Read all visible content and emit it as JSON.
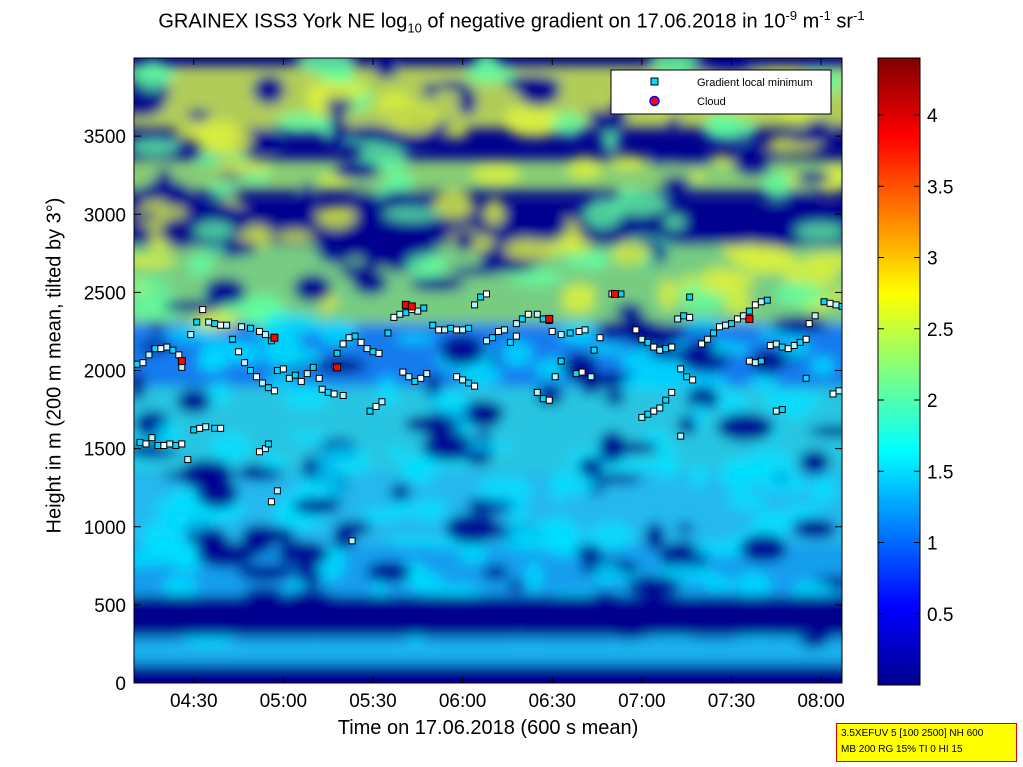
{
  "title": {
    "prefix": "GRAINEX ISS3 York NE log",
    "sub": "10",
    "mid": " of negative gradient on 17.06.2018 in 10",
    "sup1": "-9",
    "mid2": " m",
    "sup2": "-1",
    "mid3": " sr",
    "sup3": "-1"
  },
  "info_box": [
    "3.5XEFUV 5 [100 2500] NH 600",
    "MB 200 RG 15% TI 0 HI 15"
  ],
  "chart_data": {
    "type": "heatmap",
    "xlabel": "Time on 17.06.2018 (600 s mean)",
    "ylabel": "Height in m (200 m mean, tilted by 3°)",
    "x_ticks": [
      "04:30",
      "05:00",
      "05:30",
      "06:00",
      "06:30",
      "07:00",
      "07:30",
      "08:00"
    ],
    "x_tick_minutes": [
      270,
      300,
      330,
      360,
      390,
      420,
      450,
      480
    ],
    "xlim_minutes": [
      250,
      487
    ],
    "ylim": [
      0,
      4000
    ],
    "y_ticks": [
      0,
      500,
      1000,
      1500,
      2000,
      2500,
      3000,
      3500
    ],
    "colorbar": {
      "range": [
        0,
        4.4
      ],
      "ticks": [
        0.5,
        1,
        1.5,
        2,
        2.5,
        3,
        3.5,
        4
      ],
      "colormap": "jet"
    },
    "legend": {
      "placement": "top-right",
      "entries": [
        {
          "label": "Gradient local minimum",
          "marker": "square",
          "color": "#00d8ff"
        },
        {
          "label": "Cloud",
          "marker": "circle",
          "color": "#ff0000",
          "edge": "#0000ff"
        }
      ]
    },
    "series": [
      {
        "name": "Gradient local minimum",
        "points": [
          [
            251,
            2040
          ],
          [
            253,
            2050
          ],
          [
            255,
            2100
          ],
          [
            257,
            2140
          ],
          [
            259,
            2140
          ],
          [
            261,
            2150
          ],
          [
            263,
            2130
          ],
          [
            265,
            2100
          ],
          [
            266,
            2020
          ],
          [
            252,
            1540
          ],
          [
            254,
            1530
          ],
          [
            256,
            1570
          ],
          [
            258,
            1520
          ],
          [
            260,
            1520
          ],
          [
            262,
            1530
          ],
          [
            264,
            1520
          ],
          [
            266,
            1530
          ],
          [
            268,
            1430
          ],
          [
            270,
            1620
          ],
          [
            272,
            1630
          ],
          [
            274,
            1640
          ],
          [
            277,
            1630
          ],
          [
            279,
            1630
          ],
          [
            269,
            2230
          ],
          [
            271,
            2310
          ],
          [
            273,
            2390
          ],
          [
            275,
            2310
          ],
          [
            277,
            2300
          ],
          [
            279,
            2290
          ],
          [
            281,
            2290
          ],
          [
            283,
            2200
          ],
          [
            285,
            2120
          ],
          [
            287,
            2050
          ],
          [
            289,
            2000
          ],
          [
            291,
            1960
          ],
          [
            293,
            1920
          ],
          [
            295,
            1890
          ],
          [
            297,
            1870
          ],
          [
            286,
            2280
          ],
          [
            289,
            2270
          ],
          [
            292,
            2250
          ],
          [
            294,
            2230
          ],
          [
            296,
            2190
          ],
          [
            292,
            1480
          ],
          [
            294,
            1500
          ],
          [
            295,
            1530
          ],
          [
            296,
            1160
          ],
          [
            298,
            1230
          ],
          [
            298,
            2000
          ],
          [
            300,
            2010
          ],
          [
            302,
            1950
          ],
          [
            304,
            1970
          ],
          [
            306,
            1930
          ],
          [
            308,
            1980
          ],
          [
            310,
            2020
          ],
          [
            312,
            1950
          ],
          [
            313,
            1880
          ],
          [
            315,
            1860
          ],
          [
            317,
            1850
          ],
          [
            320,
            1840
          ],
          [
            318,
            2110
          ],
          [
            320,
            2170
          ],
          [
            322,
            2210
          ],
          [
            324,
            2220
          ],
          [
            326,
            2180
          ],
          [
            328,
            2140
          ],
          [
            330,
            2120
          ],
          [
            332,
            2110
          ],
          [
            323,
            910
          ],
          [
            329,
            1740
          ],
          [
            331,
            1770
          ],
          [
            333,
            1800
          ],
          [
            335,
            2240
          ],
          [
            337,
            2340
          ],
          [
            339,
            2360
          ],
          [
            341,
            2370
          ],
          [
            343,
            2390
          ],
          [
            345,
            2380
          ],
          [
            347,
            2400
          ],
          [
            340,
            1990
          ],
          [
            342,
            1960
          ],
          [
            344,
            1930
          ],
          [
            346,
            1950
          ],
          [
            348,
            1980
          ],
          [
            350,
            2290
          ],
          [
            352,
            2260
          ],
          [
            354,
            2260
          ],
          [
            356,
            2270
          ],
          [
            358,
            2260
          ],
          [
            360,
            2260
          ],
          [
            362,
            2270
          ],
          [
            358,
            1960
          ],
          [
            360,
            1940
          ],
          [
            362,
            1920
          ],
          [
            364,
            1900
          ],
          [
            364,
            2420
          ],
          [
            366,
            2470
          ],
          [
            368,
            2490
          ],
          [
            368,
            2190
          ],
          [
            370,
            2210
          ],
          [
            372,
            2250
          ],
          [
            374,
            2260
          ],
          [
            376,
            2180
          ],
          [
            378,
            2220
          ],
          [
            378,
            2300
          ],
          [
            380,
            2330
          ],
          [
            382,
            2360
          ],
          [
            385,
            2360
          ],
          [
            387,
            2330
          ],
          [
            389,
            2320
          ],
          [
            385,
            1860
          ],
          [
            387,
            1820
          ],
          [
            389,
            1810
          ],
          [
            391,
            1960
          ],
          [
            393,
            2060
          ],
          [
            390,
            2250
          ],
          [
            393,
            2230
          ],
          [
            396,
            2240
          ],
          [
            399,
            2250
          ],
          [
            401,
            2260
          ],
          [
            398,
            1980
          ],
          [
            400,
            1990
          ],
          [
            403,
            1960
          ],
          [
            404,
            2130
          ],
          [
            406,
            2210
          ],
          [
            410,
            2490
          ],
          [
            413,
            2490
          ],
          [
            418,
            2260
          ],
          [
            420,
            2200
          ],
          [
            422,
            2180
          ],
          [
            424,
            2150
          ],
          [
            426,
            2130
          ],
          [
            428,
            2140
          ],
          [
            430,
            2150
          ],
          [
            420,
            1700
          ],
          [
            422,
            1720
          ],
          [
            424,
            1740
          ],
          [
            426,
            1760
          ],
          [
            428,
            1810
          ],
          [
            430,
            1860
          ],
          [
            432,
            2330
          ],
          [
            434,
            2350
          ],
          [
            436,
            2340
          ],
          [
            433,
            2010
          ],
          [
            435,
            1960
          ],
          [
            437,
            1940
          ],
          [
            433,
            1580
          ],
          [
            436,
            2470
          ],
          [
            440,
            2170
          ],
          [
            442,
            2200
          ],
          [
            444,
            2240
          ],
          [
            446,
            2280
          ],
          [
            448,
            2290
          ],
          [
            450,
            2300
          ],
          [
            452,
            2330
          ],
          [
            454,
            2350
          ],
          [
            456,
            2380
          ],
          [
            458,
            2420
          ],
          [
            460,
            2440
          ],
          [
            462,
            2450
          ],
          [
            456,
            2060
          ],
          [
            458,
            2050
          ],
          [
            460,
            2060
          ],
          [
            463,
            2160
          ],
          [
            465,
            2170
          ],
          [
            467,
            2150
          ],
          [
            469,
            2140
          ],
          [
            471,
            2160
          ],
          [
            473,
            2180
          ],
          [
            475,
            2200
          ],
          [
            465,
            1740
          ],
          [
            467,
            1750
          ],
          [
            476,
            2300
          ],
          [
            478,
            2350
          ],
          [
            481,
            2440
          ],
          [
            483,
            2430
          ],
          [
            485,
            2420
          ],
          [
            487,
            2410
          ],
          [
            484,
            1850
          ],
          [
            486,
            1870
          ],
          [
            475,
            1950
          ]
        ]
      },
      {
        "name": "Cloud",
        "points": [
          [
            266,
            2060
          ],
          [
            297,
            2210
          ],
          [
            318,
            2020
          ],
          [
            341,
            2420
          ],
          [
            343,
            2410
          ],
          [
            389,
            2330
          ],
          [
            411,
            2490
          ],
          [
            456,
            2330
          ]
        ]
      }
    ]
  }
}
